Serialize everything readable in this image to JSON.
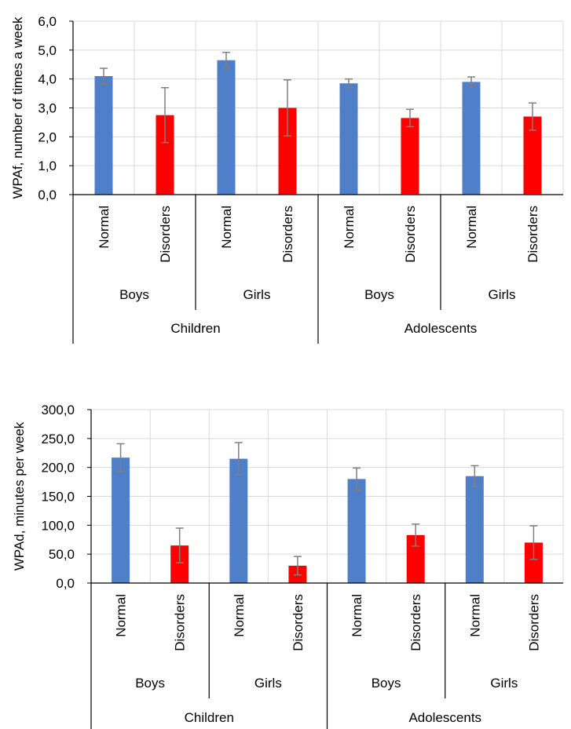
{
  "colors": {
    "normal": "#4f7fc8",
    "disorders": "#ff0000",
    "grid": "#d9d9d9",
    "axis": "#000000",
    "error_bar": "#7f7f7f"
  },
  "chart_data": [
    {
      "type": "bar",
      "title": "",
      "xlabel": "",
      "ylabel": "WPAf, number of times a week",
      "ylim": [
        0,
        6
      ],
      "yticks": [
        "0,0",
        "1,0",
        "2,0",
        "3,0",
        "4,0",
        "5,0",
        "6,0"
      ],
      "grid": true,
      "categories": [
        "Normal",
        "Disorders",
        "Normal",
        "Disorders",
        "Normal",
        "Disorders",
        "Normal",
        "Disorders"
      ],
      "sexes": [
        "Boys",
        "Girls",
        "Boys",
        "Girls"
      ],
      "age_groups": [
        "Children",
        "Adolescents"
      ],
      "values": [
        4.1,
        2.75,
        4.65,
        3.0,
        3.85,
        2.65,
        3.9,
        2.7
      ],
      "errors": [
        0.27,
        0.95,
        0.27,
        0.97,
        0.15,
        0.3,
        0.17,
        0.47
      ]
    },
    {
      "type": "bar",
      "title": "",
      "xlabel": "",
      "ylabel": "WPAd, minutes per week",
      "ylim": [
        0,
        300
      ],
      "yticks": [
        "0,0",
        "50,0",
        "100,0",
        "150,0",
        "200,0",
        "250,0",
        "300,0"
      ],
      "grid": true,
      "categories": [
        "Normal",
        "Disorders",
        "Normal",
        "Disorders",
        "Normal",
        "Disorders",
        "Normal",
        "Disorders"
      ],
      "sexes": [
        "Boys",
        "Girls",
        "Boys",
        "Girls"
      ],
      "age_groups": [
        "Children",
        "Adolescents"
      ],
      "values": [
        217,
        65,
        215,
        30,
        180,
        83,
        185,
        70
      ],
      "errors": [
        24,
        30,
        28,
        16,
        19,
        19,
        18,
        29
      ]
    }
  ]
}
